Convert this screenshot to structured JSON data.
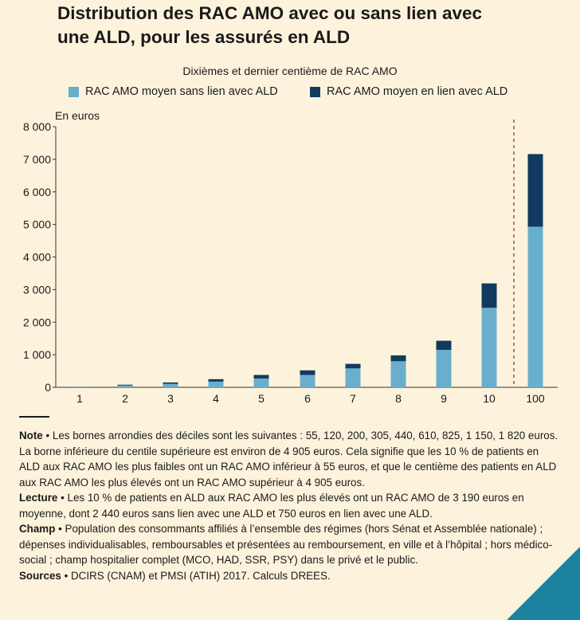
{
  "title_line1": "Distribution des RAC AMO avec ou sans lien avec",
  "title_line2": "une ALD, pour les assurés en ALD",
  "colors": {
    "light": "#6aaecd",
    "dark": "#123a5e",
    "dashed": "#8a3a3a"
  },
  "chart_data": {
    "type": "bar",
    "stacked": true,
    "subtitle": "Dixièmes et dernier centième de RAC AMO",
    "unit_label": "En euros",
    "categories": [
      "1",
      "2",
      "3",
      "4",
      "5",
      "6",
      "7",
      "8",
      "9",
      "10",
      "100"
    ],
    "series": [
      {
        "name": "RAC AMO moyen sans lien avec ALD",
        "color": "#6aaecd",
        "values": [
          15,
          55,
          105,
          175,
          270,
          380,
          580,
          800,
          1150,
          2440,
          4930
        ]
      },
      {
        "name": "RAC AMO moyen en lien avec ALD",
        "color": "#123a5e",
        "values": [
          5,
          25,
          45,
          75,
          110,
          140,
          140,
          180,
          280,
          750,
          2230
        ]
      }
    ],
    "yticks": [
      "0",
      "1 000",
      "2 000",
      "3 000",
      "4 000",
      "5 000",
      "6 000",
      "7 000",
      "8 000"
    ],
    "ylim": [
      0,
      8000
    ],
    "separator_between": [
      "10",
      "100"
    ]
  },
  "notes": {
    "note_label": "Note",
    "note_text": " • Les bornes arrondies des déciles sont les suivantes : 55, 120, 200, 305, 440, 610, 825, 1 150, 1 820 euros. La borne inférieure du centile supérieure est environ de 4 905 euros. Cela signifie que les 10 % de patients en ALD aux RAC AMO les plus faibles ont un RAC AMO inférieur à 55 euros, et que le centième des patients en ALD aux RAC AMO les plus élevés ont un RAC AMO supérieur à 4 905 euros.",
    "lecture_label": "Lecture",
    "lecture_text": " • Les 10 % de patients en ALD aux RAC AMO les plus élevés ont un RAC AMO de 3 190 euros en moyenne, dont 2 440 euros sans lien avec une ALD et 750 euros en lien avec une ALD.",
    "champ_label": "Champ",
    "champ_text": " • Population des consommants affiliés à l’ensemble des régimes (hors Sénat et Assemblée nationale) ; dépenses individualisables, remboursables et présentées au remboursement, en ville et à l’hôpital ; hors médico-social ; champ hospitalier complet (MCO, HAD, SSR, PSY) dans le privé et le public.",
    "sources_label": "Sources",
    "sources_text": " • DCIRS (CNAM) et PMSI (ATIH) 2017. Calculs DREES."
  }
}
